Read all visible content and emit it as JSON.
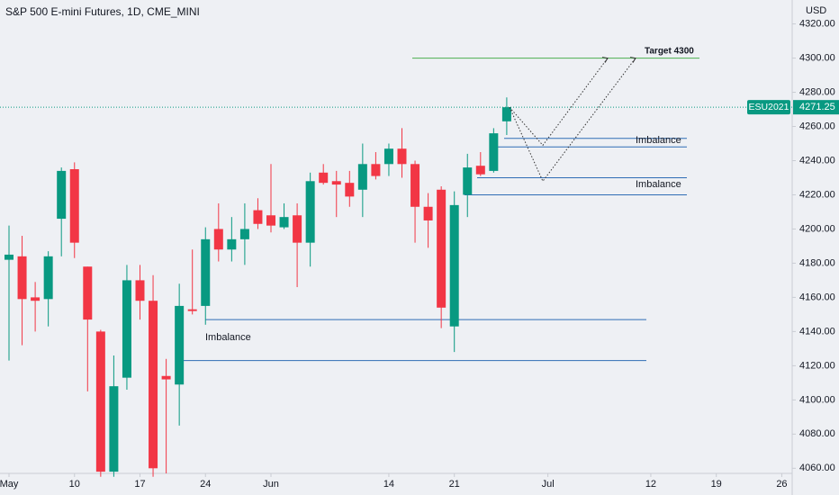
{
  "chart_data": {
    "type": "candlestick",
    "title": "S&P 500 E-mini Futures, 1D, CME_MINI",
    "currency": "USD",
    "up_color": "#089981",
    "down_color": "#f23645",
    "grid": false,
    "ylim": [
      4057,
      4334
    ],
    "yticks": [
      {
        "value": 4060,
        "label": "4060.00"
      },
      {
        "value": 4080,
        "label": "4080.00"
      },
      {
        "value": 4100,
        "label": "4100.00"
      },
      {
        "value": 4120,
        "label": "4120.00"
      },
      {
        "value": 4140,
        "label": "4140.00"
      },
      {
        "value": 4160,
        "label": "4160.00"
      },
      {
        "value": 4180,
        "label": "4180.00"
      },
      {
        "value": 4200,
        "label": "4200.00"
      },
      {
        "value": 4220,
        "label": "4220.00"
      },
      {
        "value": 4240,
        "label": "4240.00"
      },
      {
        "value": 4260,
        "label": "4260.00"
      },
      {
        "value": 4280,
        "label": "4280.00"
      },
      {
        "value": 4300,
        "label": "4300.00"
      },
      {
        "value": 4320,
        "label": "4320.00"
      }
    ],
    "xticks": [
      {
        "value": "May 3",
        "label": "May"
      },
      {
        "value": "May 10",
        "label": "10"
      },
      {
        "value": "May 17",
        "label": "17"
      },
      {
        "value": "May 24",
        "label": "24"
      },
      {
        "value": "Jun 1",
        "label": "Jun"
      },
      {
        "value": "Jun 14",
        "label": "14"
      },
      {
        "value": "Jun 21",
        "label": "21"
      },
      {
        "value": "Jul 1",
        "label": "Jul"
      },
      {
        "value": "Jul 12",
        "label": "12"
      },
      {
        "value": "Jul 19",
        "label": "19"
      },
      {
        "value": "Jul 26",
        "label": "26"
      }
    ],
    "categories": [
      "May 3",
      "May 4",
      "May 5",
      "May 6",
      "May 7",
      "May 10",
      "May 11",
      "May 12",
      "May 13",
      "May 14",
      "May 17",
      "May 18",
      "May 19",
      "May 20",
      "May 21",
      "May 24",
      "May 25",
      "May 26",
      "May 27",
      "May 28",
      "Jun 1",
      "Jun 2",
      "Jun 3",
      "Jun 4",
      "Jun 7",
      "Jun 8",
      "Jun 9",
      "Jun 10",
      "Jun 11",
      "Jun 14",
      "Jun 15",
      "Jun 16",
      "Jun 17",
      "Jun 18",
      "Jun 21",
      "Jun 22",
      "Jun 23",
      "Jun 24",
      "Jun 25"
    ],
    "series": [
      {
        "name": "ESU2021",
        "open": [
          4182,
          4184,
          4160,
          4159,
          4206,
          4235,
          4178,
          4140,
          4058,
          4113,
          4170,
          4158,
          4114,
          4109,
          4153,
          4155,
          4200,
          4188,
          4194,
          4211,
          4208,
          4201,
          4208,
          4192,
          4233,
          4228,
          4227,
          4223,
          4238,
          4238,
          4247,
          4238,
          4213,
          4223,
          4143,
          4220,
          4237,
          4234,
          4263
        ],
        "high": [
          4202,
          4196,
          4169,
          4187,
          4236,
          4239,
          4178,
          4141,
          4126,
          4179,
          4179,
          4173,
          4124,
          4168,
          4188,
          4201,
          4215,
          4207,
          4215,
          4218,
          4238,
          4215,
          4215,
          4233,
          4238,
          4234,
          4234,
          4250,
          4245,
          4250,
          4259,
          4240,
          4221,
          4225,
          4222,
          4244,
          4245,
          4259,
          4277
        ],
        "low": [
          4123,
          4132,
          4140,
          4143,
          4184,
          4183,
          4105,
          4055,
          4055,
          4106,
          4147,
          4055,
          4057,
          4085,
          4150,
          4144,
          4181,
          4181,
          4179,
          4200,
          4198,
          4200,
          4166,
          4178,
          4226,
          4207,
          4213,
          4207,
          4229,
          4231,
          4230,
          4192,
          4189,
          4142,
          4128,
          4207,
          4231,
          4233,
          4255
        ],
        "close": [
          4185,
          4159,
          4158,
          4184,
          4234,
          4192,
          4147,
          4058,
          4108,
          4170,
          4158,
          4060,
          4112,
          4155,
          4152,
          4194,
          4188,
          4194,
          4200,
          4203,
          4202,
          4207,
          4192,
          4228,
          4227,
          4226,
          4219,
          4238,
          4231,
          4247,
          4238,
          4213,
          4205,
          4154,
          4214,
          4236,
          4232,
          4256,
          4271.25
        ]
      }
    ],
    "levels": [
      {
        "value": 4300,
        "color": "#4caf50"
      },
      {
        "value": 4253,
        "color": "#2f6db5"
      },
      {
        "value": 4248,
        "color": "#2f6db5"
      },
      {
        "value": 4230,
        "color": "#2f6db5"
      },
      {
        "value": 4220,
        "color": "#2f6db5"
      },
      {
        "value": 4147,
        "color": "#2f6db5"
      },
      {
        "value": 4123,
        "color": "#2f6db5"
      }
    ],
    "projections": [
      [
        4271.25,
        4249,
        4300
      ],
      [
        4271.25,
        4228,
        4300
      ]
    ],
    "annotations": [
      "Target 4300",
      "Imbalance",
      "Imbalance",
      "Imbalance"
    ]
  }
}
